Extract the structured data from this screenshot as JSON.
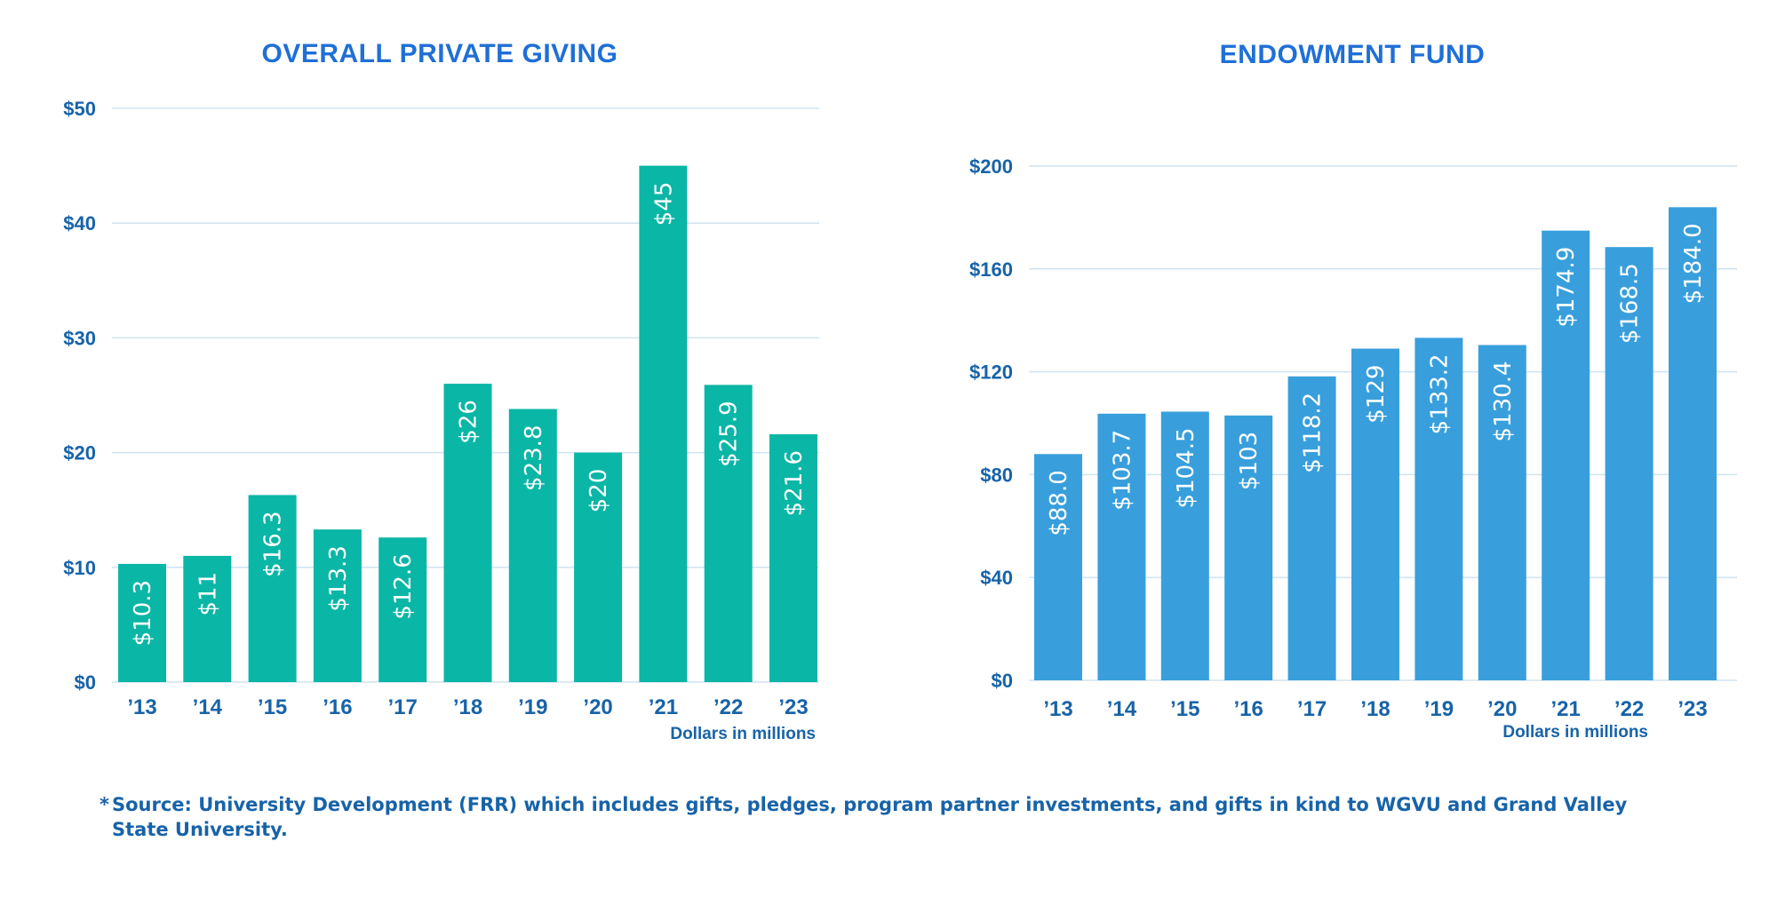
{
  "colors": {
    "title": "#1f6fd6",
    "text": "#1763a8",
    "grid": "#cfe3f1",
    "private_bar": "#0ab6a6",
    "endowment_bar": "#389fdc"
  },
  "chart_data": [
    {
      "type": "bar",
      "title": "OVERALL PRIVATE GIVING",
      "categories": [
        "’13",
        "’14",
        "’15",
        "’16",
        "’17",
        "’18",
        "’19",
        "’20",
        "’21",
        "’22",
        "’23"
      ],
      "values": [
        10.3,
        11,
        16.3,
        13.3,
        12.6,
        26,
        23.8,
        20,
        45,
        25.9,
        21.6
      ],
      "value_labels": [
        "$10.3",
        "$11",
        "$16.3",
        "$13.3",
        "$12.6",
        "$26",
        "$23.8",
        "$20",
        "$45",
        "$25.9",
        "$21.6"
      ],
      "yticks": [
        0,
        10,
        20,
        30,
        40,
        50
      ],
      "ytick_labels": [
        "$0",
        "$10",
        "$20",
        "$30",
        "$40",
        "$50"
      ],
      "ylim": [
        0,
        50
      ],
      "xlabel": "",
      "ylabel": "",
      "note": "Dollars in millions",
      "grid": true
    },
    {
      "type": "bar",
      "title": "ENDOWMENT FUND",
      "categories": [
        "’13",
        "’14",
        "’15",
        "’16",
        "’17",
        "’18",
        "’19",
        "’20",
        "’21",
        "’22",
        "’23"
      ],
      "values": [
        88.0,
        103.7,
        104.5,
        103,
        118.2,
        129,
        133.2,
        130.4,
        174.9,
        168.5,
        184.0
      ],
      "value_labels": [
        "$88.0",
        "$103.7",
        "$104.5",
        "$103",
        "$118.2",
        "$129",
        "$133.2",
        "$130.4",
        "$174.9",
        "$168.5",
        "$184.0"
      ],
      "yticks": [
        0,
        40,
        80,
        120,
        160,
        200
      ],
      "ytick_labels": [
        "$0",
        "$40",
        "$80",
        "$120",
        "$160",
        "$200"
      ],
      "ylim": [
        0,
        200
      ],
      "xlabel": "",
      "ylabel": "",
      "note": "Dollars in millions",
      "grid": true
    }
  ],
  "footnote": {
    "marker": "*",
    "text": "Source: University Development (FRR) which includes gifts, pledges, program partner investments, and gifts in kind to WGVU and Grand Valley State University."
  }
}
